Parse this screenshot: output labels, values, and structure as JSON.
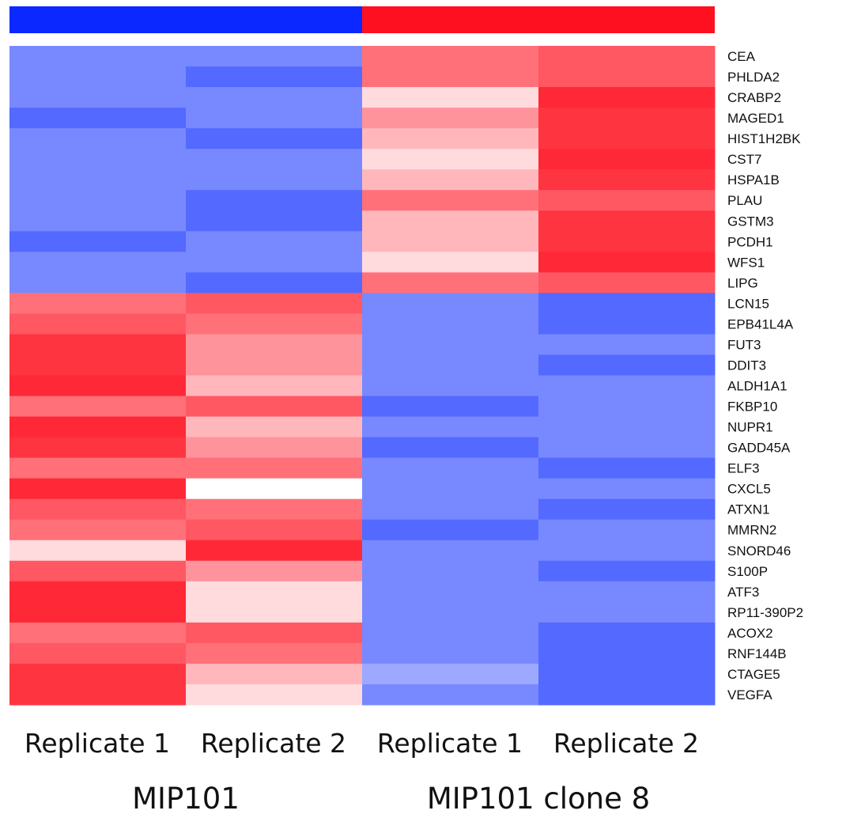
{
  "chart_data": {
    "type": "heatmap",
    "title": "",
    "groups": [
      {
        "name": "MIP101",
        "color": "#0a28ff",
        "columns": [
          "Replicate 1",
          "Replicate 2"
        ]
      },
      {
        "name": "MIP101 clone 8",
        "color": "#ff1020",
        "columns": [
          "Replicate 1",
          "Replicate 2"
        ]
      }
    ],
    "columns": [
      "Replicate 1",
      "Replicate 2",
      "Replicate 1",
      "Replicate 2"
    ],
    "rows": [
      "CEA",
      "PHLDA2",
      "CRABP2",
      "MAGED1",
      "HIST1H2BK",
      "CST7",
      "HSPA1B",
      "PLAU",
      "GSTM3",
      "PCDH1",
      "WFS1",
      "LIPG",
      "LCN15",
      "EPB41L4A",
      "FUT3",
      "DDIT3",
      "ALDH1A1",
      "FKBP10",
      "NUPR1",
      "GADD45A",
      "ELF3",
      "CXCL5",
      "ATXN1",
      "MMRN2",
      "SNORD46",
      "S100P",
      "ATF3",
      "RP11-390P2",
      "ACOX2",
      "RNF144B",
      "CTAGE5",
      "VEGFA"
    ],
    "value_scale": {
      "min": -1,
      "max": 1,
      "low_color": "#0a28ff",
      "mid_color": "#ffffff",
      "high_color": "#ff1020"
    },
    "values": [
      [
        -0.55,
        -0.55,
        0.6,
        0.7
      ],
      [
        -0.55,
        -0.7,
        0.6,
        0.7
      ],
      [
        -0.55,
        -0.55,
        0.15,
        0.9
      ],
      [
        -0.7,
        -0.55,
        0.45,
        0.85
      ],
      [
        -0.55,
        -0.7,
        0.3,
        0.85
      ],
      [
        -0.55,
        -0.55,
        0.15,
        0.9
      ],
      [
        -0.55,
        -0.55,
        0.3,
        0.85
      ],
      [
        -0.55,
        -0.7,
        0.6,
        0.7
      ],
      [
        -0.55,
        -0.7,
        0.3,
        0.85
      ],
      [
        -0.7,
        -0.55,
        0.3,
        0.85
      ],
      [
        -0.55,
        -0.55,
        0.15,
        0.9
      ],
      [
        -0.55,
        -0.7,
        0.6,
        0.7
      ],
      [
        0.6,
        0.7,
        -0.55,
        -0.7
      ],
      [
        0.7,
        0.6,
        -0.55,
        -0.7
      ],
      [
        0.85,
        0.45,
        -0.55,
        -0.55
      ],
      [
        0.85,
        0.45,
        -0.55,
        -0.7
      ],
      [
        0.9,
        0.3,
        -0.55,
        -0.55
      ],
      [
        0.6,
        0.7,
        -0.7,
        -0.55
      ],
      [
        0.9,
        0.3,
        -0.55,
        -0.55
      ],
      [
        0.85,
        0.45,
        -0.7,
        -0.55
      ],
      [
        0.6,
        0.6,
        -0.55,
        -0.7
      ],
      [
        0.9,
        0.0,
        -0.55,
        -0.55
      ],
      [
        0.7,
        0.6,
        -0.55,
        -0.7
      ],
      [
        0.6,
        0.7,
        -0.7,
        -0.55
      ],
      [
        0.15,
        0.9,
        -0.55,
        -0.55
      ],
      [
        0.7,
        0.45,
        -0.55,
        -0.7
      ],
      [
        0.9,
        0.15,
        -0.55,
        -0.55
      ],
      [
        0.9,
        0.15,
        -0.55,
        -0.55
      ],
      [
        0.6,
        0.7,
        -0.55,
        -0.7
      ],
      [
        0.7,
        0.6,
        -0.55,
        -0.7
      ],
      [
        0.85,
        0.3,
        -0.4,
        -0.7
      ],
      [
        0.85,
        0.15,
        -0.55,
        -0.7
      ]
    ],
    "legend": "none",
    "grid": false
  }
}
